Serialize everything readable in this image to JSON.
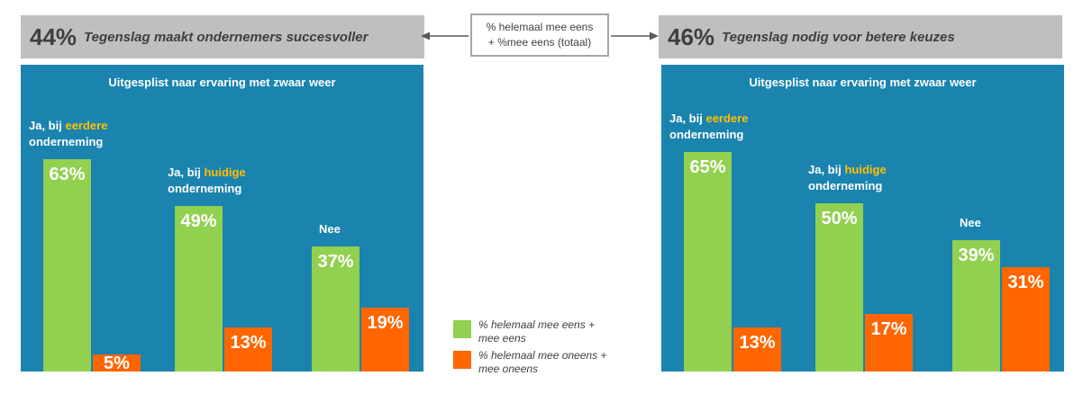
{
  "header_left": {
    "pct": "44%",
    "text": "Tegenslag maakt ondernemers succesvoller"
  },
  "header_right": {
    "pct": "46%",
    "text": "Tegenslag nodig voor betere keuzes"
  },
  "center_box": {
    "line1": "% helemaal mee eens",
    "line2": "+ %mee eens (totaal)"
  },
  "legend": {
    "agree_line1": "% helemaal mee eens +",
    "agree_line2": "mee eens",
    "disagree_line1": "% helemaal mee oneens +",
    "disagree_line2": "mee oneens",
    "agree_color": "#92d050",
    "disagree_color": "#ff6600"
  },
  "chart_data": [
    {
      "type": "bar",
      "title": "Uitgesplist naar ervaring met zwaar weer",
      "categories": [
        {
          "pre": "Ja, bij ",
          "highlight": "eerdere",
          "post": "onderneming"
        },
        {
          "pre": "Ja, bij ",
          "highlight": "huidige",
          "post": "onderneming"
        },
        {
          "pre": "Nee",
          "highlight": "",
          "post": ""
        }
      ],
      "series": [
        {
          "values": [
            63,
            49,
            37
          ],
          "labels": [
            "63%",
            "49%",
            "37%"
          ],
          "color": "#92d050"
        },
        {
          "values": [
            5,
            13,
            19
          ],
          "labels": [
            "5%",
            "13%",
            "19%"
          ],
          "color": "#ff6600"
        }
      ],
      "ylim": [
        0,
        100
      ]
    },
    {
      "type": "bar",
      "title": "Uitgesplist naar ervaring met zwaar weer",
      "categories": [
        {
          "pre": "Ja, bij ",
          "highlight": "eerdere",
          "post": "onderneming"
        },
        {
          "pre": "Ja, bij ",
          "highlight": "huidige",
          "post": "onderneming"
        },
        {
          "pre": "Nee",
          "highlight": "",
          "post": ""
        }
      ],
      "series": [
        {
          "values": [
            65,
            50,
            39
          ],
          "labels": [
            "65%",
            "50%",
            "39%"
          ],
          "color": "#92d050"
        },
        {
          "values": [
            13,
            17,
            31
          ],
          "labels": [
            "13%",
            "17%",
            "31%"
          ],
          "color": "#ff6600"
        }
      ],
      "ylim": [
        0,
        100
      ]
    }
  ]
}
